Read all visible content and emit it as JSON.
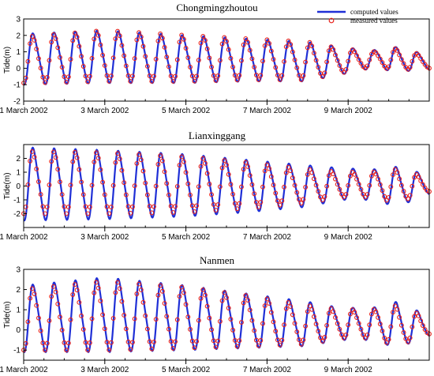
{
  "colors": {
    "computed": "#1f2fd6",
    "measured": "#e8231d",
    "axis": "#000000"
  },
  "legend": {
    "computed": "computed values",
    "measured": "measured values",
    "placement": "top-right"
  },
  "chart_data": [
    {
      "type": "line",
      "title": "Chongmingzhoutou",
      "ylabel": "Tide(m)",
      "xlabel": "",
      "ylim": [
        -2,
        3
      ],
      "yticks": [
        -2,
        -1,
        0,
        1,
        2,
        3
      ],
      "xlim": [
        "2002-03-01 00:00",
        "2002-03-11 00:00"
      ],
      "xticks": [
        {
          "date": "2002-03-01",
          "label": "1 March 2002"
        },
        {
          "date": "2002-03-03",
          "label": "3 March 2002"
        },
        {
          "date": "2002-03-05",
          "label": "5 March 2002"
        },
        {
          "date": "2002-03-07",
          "label": "7 March 2002"
        },
        {
          "date": "2002-03-09",
          "label": "9 March 2002"
        }
      ],
      "grid": false,
      "cycles": 19,
      "computed_envelope": {
        "days": [
          0,
          2,
          4,
          5.5,
          7,
          7.8,
          8.6,
          9.2,
          10
        ],
        "max": [
          2.1,
          2.3,
          2.0,
          1.8,
          1.6,
          1.3,
          1.1,
          1.3,
          0.8
        ],
        "min": [
          -1.0,
          -0.9,
          -0.9,
          -0.8,
          -0.8,
          -0.4,
          0.0,
          -0.2,
          -0.1
        ]
      },
      "measured_envelope": {
        "days": [
          0,
          2,
          4,
          5.5,
          7,
          7.8,
          8.6,
          9.2,
          10
        ],
        "max": [
          1.9,
          2.3,
          2.0,
          1.8,
          1.6,
          1.2,
          1.0,
          1.2,
          0.7
        ],
        "min": [
          -0.9,
          -0.8,
          -0.8,
          -0.7,
          -0.7,
          -0.3,
          0.1,
          -0.1,
          0.0
        ]
      }
    },
    {
      "type": "line",
      "title": "Lianxinggang",
      "ylabel": "Tide(m)",
      "xlabel": "",
      "ylim": [
        -3,
        3
      ],
      "yticks": [
        -2,
        -1,
        0,
        1,
        2
      ],
      "xlim": [
        "2002-03-01 00:00",
        "2002-03-11 00:00"
      ],
      "xticks": [
        {
          "date": "2002-03-01",
          "label": "1 March 2002"
        },
        {
          "date": "2002-03-03",
          "label": "3 March 2002"
        },
        {
          "date": "2002-03-05",
          "label": "5 March 2002"
        },
        {
          "date": "2002-03-07",
          "label": "7 March 2002"
        },
        {
          "date": "2002-03-09",
          "label": "9 March 2002"
        }
      ],
      "grid": false,
      "cycles": 19,
      "computed_envelope": {
        "days": [
          0,
          2,
          4,
          5.5,
          7,
          7.8,
          8.6,
          9.2,
          10
        ],
        "max": [
          2.8,
          2.6,
          2.3,
          1.9,
          1.5,
          1.3,
          1.2,
          1.4,
          0.8
        ],
        "min": [
          -2.5,
          -2.4,
          -2.2,
          -1.9,
          -1.5,
          -1.0,
          -1.0,
          -1.5,
          -0.6
        ]
      },
      "measured_envelope": {
        "days": [
          0,
          2,
          4,
          5.5,
          7,
          7.8,
          8.6,
          9.2,
          10
        ],
        "max": [
          2.5,
          2.4,
          2.1,
          1.7,
          1.2,
          1.0,
          1.0,
          1.2,
          0.6
        ],
        "min": [
          -2.0,
          -2.0,
          -1.9,
          -1.6,
          -1.2,
          -0.8,
          -0.8,
          -1.2,
          -0.4
        ]
      }
    },
    {
      "type": "line",
      "title": "Nanmen",
      "ylabel": "Tide(m)",
      "xlabel": "",
      "ylim": [
        -1.5,
        3
      ],
      "yticks": [
        -1,
        0,
        1,
        2,
        3
      ],
      "xlim": [
        "2002-03-01 00:00",
        "2002-03-11 00:00"
      ],
      "xticks": [
        {
          "date": "2002-03-01",
          "label": "1 March 2002"
        },
        {
          "date": "2002-03-03",
          "label": "3 March 2002"
        },
        {
          "date": "2002-03-05",
          "label": "5 March 2002"
        },
        {
          "date": "2002-03-07",
          "label": "7 March 2002"
        },
        {
          "date": "2002-03-09",
          "label": "9 March 2002"
        }
      ],
      "grid": false,
      "cycles": 19,
      "computed_envelope": {
        "days": [
          0,
          2,
          4,
          5.5,
          7,
          7.8,
          8.6,
          9.2,
          10
        ],
        "max": [
          2.2,
          2.6,
          2.2,
          1.8,
          1.4,
          1.1,
          1.1,
          1.4,
          0.7
        ],
        "min": [
          -1.1,
          -1.1,
          -1.0,
          -0.9,
          -0.8,
          -0.5,
          -0.5,
          -0.9,
          -0.3
        ]
      },
      "measured_envelope": {
        "days": [
          0,
          2,
          4,
          5.5,
          7,
          7.8,
          8.6,
          9.2,
          10
        ],
        "max": [
          2.0,
          2.4,
          2.1,
          1.7,
          1.2,
          1.0,
          1.0,
          1.2,
          0.6
        ],
        "min": [
          -1.0,
          -1.0,
          -0.9,
          -0.8,
          -0.7,
          -0.4,
          -0.4,
          -0.8,
          -0.2
        ]
      }
    }
  ]
}
